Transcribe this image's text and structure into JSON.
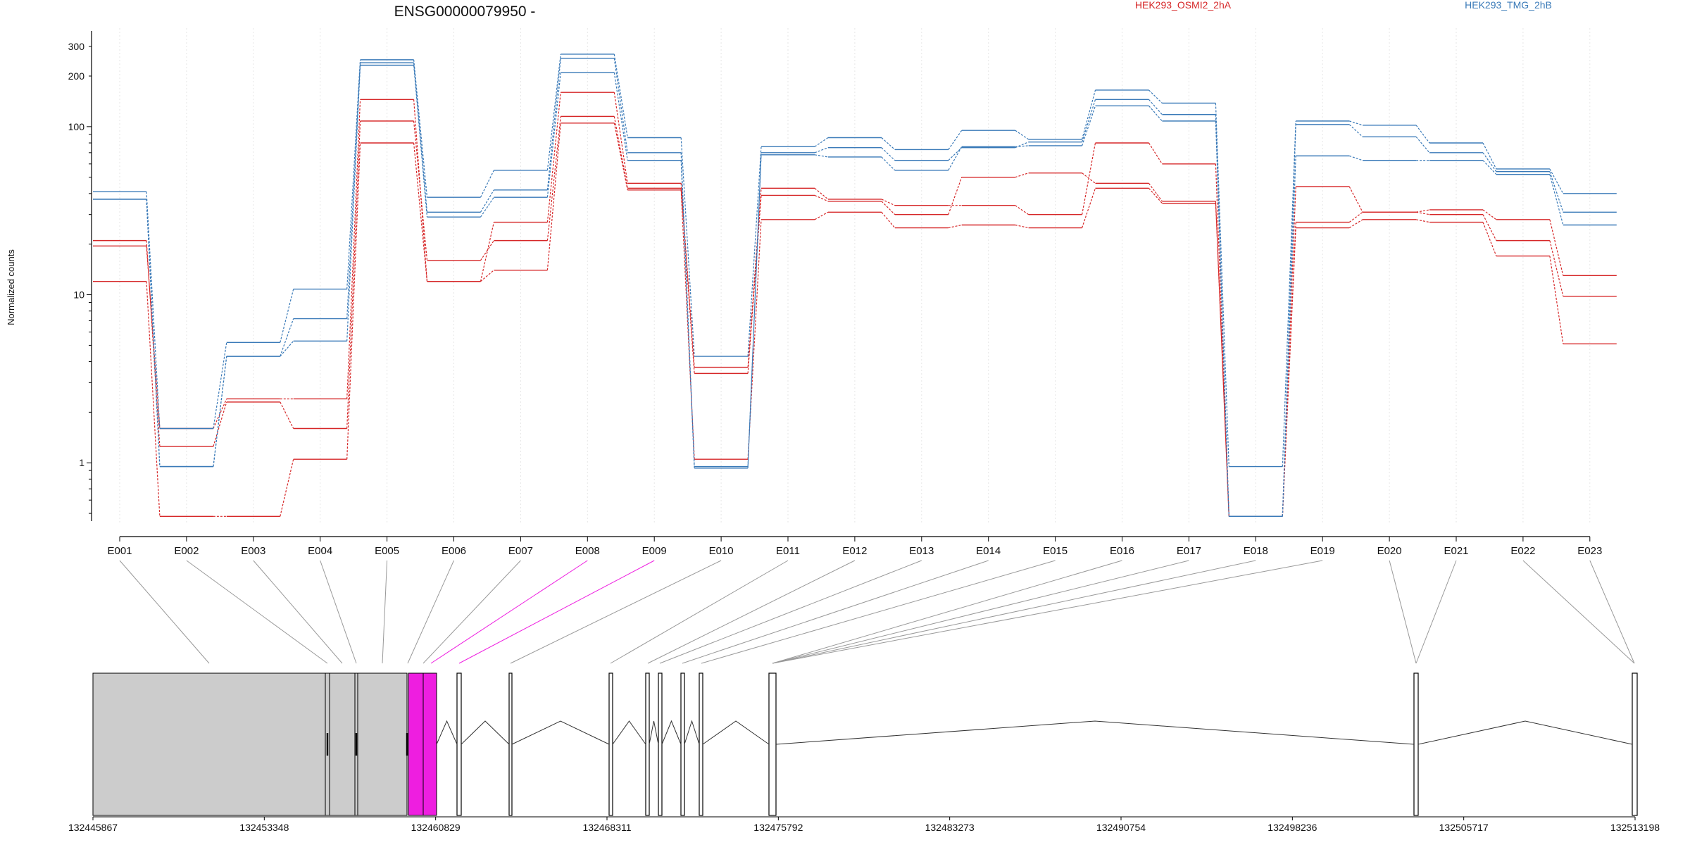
{
  "chart_data": {
    "type": "line",
    "title": "ENSG00000079950 -",
    "ylabel": "Normalized counts",
    "y_scale": "log",
    "ylim": [
      0.45,
      350
    ],
    "y_ticks": [
      1,
      10,
      100,
      200,
      300
    ],
    "y_tick_labels": [
      "1",
      "10",
      "100",
      "200",
      "300"
    ],
    "grid": "vertical dotted",
    "legend_position": "top",
    "categories": [
      "E001",
      "E002",
      "E003",
      "E004",
      "E005",
      "E006",
      "E007",
      "E008",
      "E009",
      "E010",
      "E011",
      "E012",
      "E013",
      "E014",
      "E015",
      "E016",
      "E017",
      "E018",
      "E019",
      "E020",
      "E021",
      "E022",
      "E023"
    ],
    "groups": [
      {
        "label": "HEK293_OSMI2_2hA",
        "color": "#d62728"
      },
      {
        "label": "HEK293_TMG_2hB",
        "color": "#3a7ab8"
      }
    ],
    "series": [
      {
        "group": 0,
        "values": [
          19.5,
          1.6,
          2.4,
          2.4,
          145,
          12,
          27,
          160,
          46,
          3.7,
          43,
          37,
          34,
          34,
          30,
          80,
          60,
          0.48,
          44,
          31,
          32,
          28,
          13
        ]
      },
      {
        "group": 0,
        "values": [
          21,
          1.25,
          2.3,
          1.6,
          108,
          16,
          21,
          115,
          43,
          3.4,
          39,
          36,
          30,
          50,
          53,
          46,
          36,
          0.48,
          27,
          31,
          30,
          21,
          9.8
        ]
      },
      {
        "group": 0,
        "values": [
          12,
          0.48,
          0.48,
          1.05,
          80,
          12,
          14,
          105,
          42,
          1.05,
          28,
          31,
          25,
          26,
          25,
          43,
          35,
          0.48,
          25,
          28,
          27,
          17,
          5.1
        ]
      },
      {
        "group": 1,
        "values": [
          41,
          1.6,
          5.2,
          10.8,
          250,
          38,
          55,
          270,
          86,
          4.3,
          76,
          86,
          73,
          95,
          84,
          165,
          138,
          0.95,
          108,
          102,
          80,
          56,
          40
        ]
      },
      {
        "group": 1,
        "values": [
          37,
          0.95,
          4.3,
          7.2,
          240,
          31,
          42,
          255,
          70,
          0.95,
          70,
          75,
          63,
          75,
          81,
          145,
          118,
          0.48,
          103,
          87,
          70,
          54,
          31
        ]
      },
      {
        "group": 1,
        "values": [
          37,
          0.95,
          4.3,
          5.3,
          232,
          29,
          38,
          210,
          63,
          0.93,
          68,
          66,
          55,
          76,
          77,
          133,
          108,
          0.48,
          67,
          63,
          63,
          52,
          26
        ]
      }
    ],
    "genomic_axis": {
      "ticks": [
        "132445867",
        "132453348",
        "132460829",
        "132468311",
        "132475792",
        "132483273",
        "132490754",
        "132498236",
        "132505717",
        "132513198"
      ],
      "range": [
        132445867,
        132513198
      ]
    },
    "gene_model": {
      "highlighted_exons": [
        "E008",
        "E009"
      ],
      "exon_fill": "#cccccc",
      "highlight_color": "#ee1ee0"
    }
  }
}
